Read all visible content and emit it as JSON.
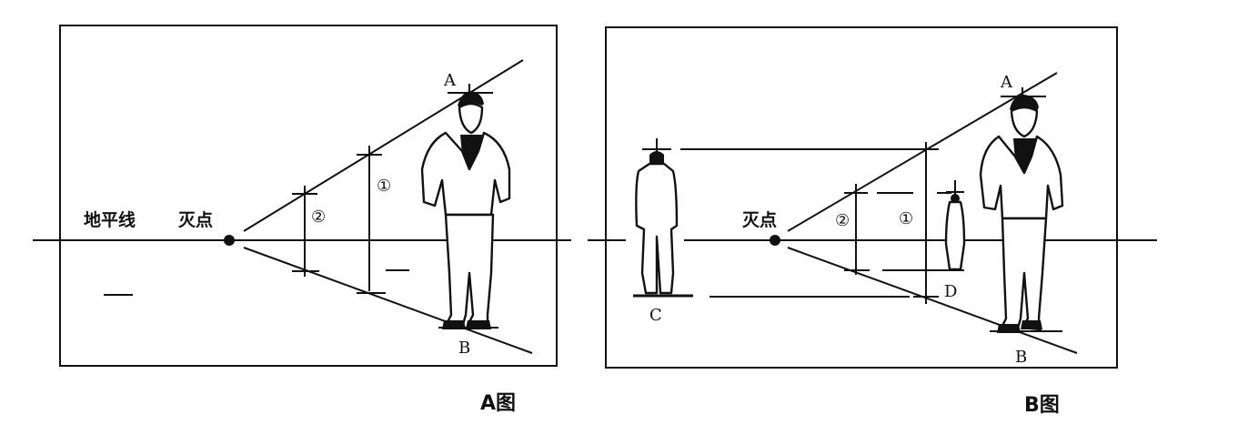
{
  "panel_a": {
    "caption": "A图",
    "horizon_label": "地平线",
    "vanishing_label": "灭点",
    "point_top": "A",
    "point_bottom": "B",
    "mark_1": "①",
    "mark_2": "②"
  },
  "panel_b": {
    "caption": "B图",
    "vanishing_label": "灭点",
    "point_top": "A",
    "point_bottom": "B",
    "point_c": "C",
    "point_d": "D",
    "mark_1": "①",
    "mark_2": "②"
  },
  "colors": {
    "ink": "#111111",
    "paper": "#ffffff"
  }
}
